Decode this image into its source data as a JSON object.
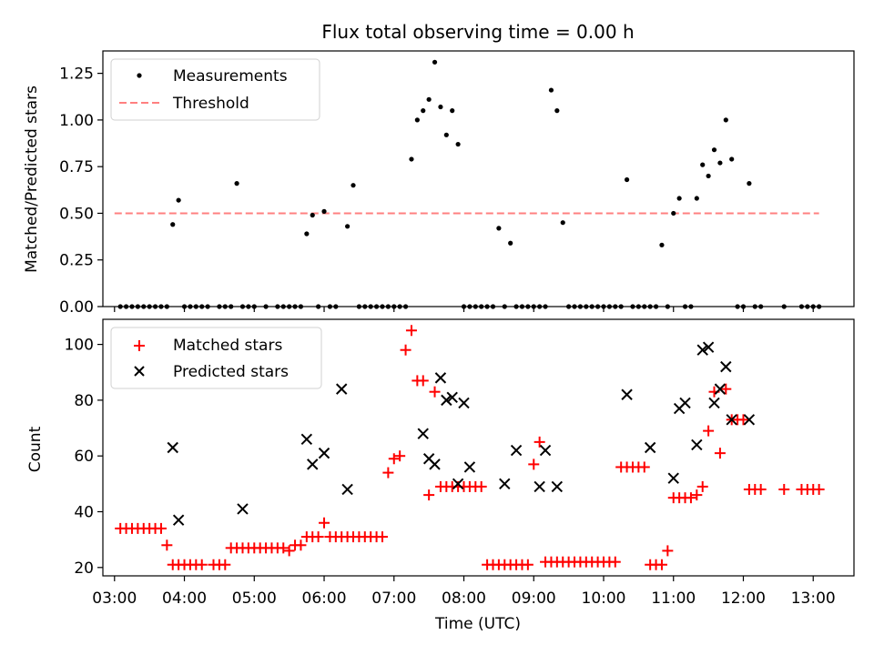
{
  "chart_data": [
    {
      "type": "scatter",
      "title": "Flux total observing time = 0.00 h",
      "xlabel": "",
      "ylabel": "Matched/Predicted stars",
      "ylim": [
        0,
        1.37
      ],
      "yticks": [
        "0.00",
        "0.25",
        "0.50",
        "0.75",
        "1.00",
        "1.25"
      ],
      "ytick_values": [
        0,
        0.25,
        0.5,
        0.75,
        1.0,
        1.25
      ],
      "legend_position": "top-left",
      "threshold": 0.5,
      "threshold_range": [
        "03:00",
        "13:05"
      ],
      "series": [
        {
          "name": "Measurements",
          "marker": "dot",
          "color": "#000000",
          "x": [
            "03:05",
            "03:10",
            "03:15",
            "03:20",
            "03:25",
            "03:30",
            "03:35",
            "03:40",
            "03:45",
            "03:50",
            "03:55",
            "04:00",
            "04:05",
            "04:10",
            "04:15",
            "04:20",
            "04:30",
            "04:35",
            "04:40",
            "04:45",
            "04:50",
            "04:55",
            "05:00",
            "05:10",
            "05:20",
            "05:25",
            "05:30",
            "05:35",
            "05:40",
            "05:45",
            "05:50",
            "05:55",
            "06:00",
            "06:05",
            "06:10",
            "06:20",
            "06:25",
            "06:30",
            "06:35",
            "06:40",
            "06:45",
            "06:50",
            "06:55",
            "07:00",
            "07:05",
            "07:10",
            "07:15",
            "07:20",
            "07:25",
            "07:30",
            "07:35",
            "07:40",
            "07:45",
            "07:50",
            "07:55",
            "08:00",
            "08:05",
            "08:10",
            "08:15",
            "08:20",
            "08:25",
            "08:30",
            "08:35",
            "08:40",
            "08:45",
            "08:50",
            "08:55",
            "09:00",
            "09:05",
            "09:10",
            "09:15",
            "09:20",
            "09:25",
            "09:30",
            "09:35",
            "09:40",
            "09:45",
            "09:50",
            "09:55",
            "10:00",
            "10:05",
            "10:10",
            "10:15",
            "10:20",
            "10:25",
            "10:30",
            "10:35",
            "10:40",
            "10:45",
            "10:50",
            "10:55",
            "11:00",
            "11:05",
            "11:10",
            "11:15",
            "11:20",
            "11:25",
            "11:30",
            "11:35",
            "11:40",
            "11:45",
            "11:50",
            "11:55",
            "12:00",
            "12:05",
            "12:10",
            "12:15",
            "12:35",
            "12:50",
            "12:55",
            "13:00",
            "13:05"
          ],
          "values": [
            0,
            0,
            0,
            0,
            0,
            0,
            0,
            0,
            0,
            0.44,
            0.57,
            0,
            0,
            0,
            0,
            0,
            0,
            0,
            0,
            0.66,
            0,
            0,
            0,
            0,
            0,
            0,
            0,
            0,
            0,
            0.39,
            0.49,
            0,
            0.51,
            0,
            0,
            0.43,
            0.65,
            0,
            0,
            0,
            0,
            0,
            0,
            0,
            0,
            0,
            0.79,
            1.0,
            1.05,
            1.11,
            1.31,
            1.07,
            0.92,
            1.05,
            0.87,
            0,
            0,
            0,
            0,
            0,
            0,
            0.42,
            0,
            0.34,
            0,
            0,
            0,
            0,
            0,
            0,
            1.16,
            1.05,
            0.45,
            0,
            0,
            0,
            0,
            0,
            0,
            0,
            0,
            0,
            0,
            0.68,
            0,
            0,
            0,
            0,
            0,
            0.33,
            0,
            0.5,
            0.58,
            0,
            0,
            0.58,
            0.76,
            0.7,
            0.84,
            0.77,
            1.0,
            0.79,
            0,
            0,
            0.66,
            0,
            0,
            0,
            0,
            0,
            0,
            0
          ]
        },
        {
          "name": "Threshold",
          "marker": "dashed-line",
          "color": "#ff8080"
        }
      ]
    },
    {
      "type": "scatter",
      "title": "",
      "xlabel": "Time (UTC)",
      "ylabel": "Count",
      "xticks": [
        "03:00",
        "04:00",
        "05:00",
        "06:00",
        "07:00",
        "08:00",
        "09:00",
        "10:00",
        "11:00",
        "12:00",
        "13:00"
      ],
      "xlim": [
        "02:50",
        "13:35"
      ],
      "ylim": [
        17,
        109
      ],
      "yticks": [
        "20",
        "40",
        "60",
        "80",
        "100"
      ],
      "ytick_values": [
        20,
        40,
        60,
        80,
        100
      ],
      "legend_position": "top-left",
      "series": [
        {
          "name": "Matched stars",
          "marker": "plus",
          "color": "#ff0000",
          "x": [
            "03:05",
            "03:10",
            "03:15",
            "03:20",
            "03:25",
            "03:30",
            "03:35",
            "03:40",
            "03:45",
            "03:50",
            "03:55",
            "04:00",
            "04:05",
            "04:10",
            "04:15",
            "04:25",
            "04:30",
            "04:35",
            "04:40",
            "04:45",
            "04:50",
            "04:55",
            "05:00",
            "05:05",
            "05:10",
            "05:15",
            "05:20",
            "05:25",
            "05:30",
            "05:35",
            "05:40",
            "05:45",
            "05:50",
            "05:55",
            "06:00",
            "06:05",
            "06:10",
            "06:15",
            "06:20",
            "06:25",
            "06:30",
            "06:35",
            "06:40",
            "06:45",
            "06:50",
            "06:55",
            "07:00",
            "07:05",
            "07:10",
            "07:15",
            "07:20",
            "07:25",
            "07:30",
            "07:35",
            "07:40",
            "07:45",
            "07:50",
            "07:55",
            "08:00",
            "08:05",
            "08:10",
            "08:15",
            "08:20",
            "08:25",
            "08:30",
            "08:35",
            "08:40",
            "08:45",
            "08:50",
            "08:55",
            "09:00",
            "09:05",
            "09:10",
            "09:15",
            "09:20",
            "09:25",
            "09:30",
            "09:35",
            "09:40",
            "09:45",
            "09:50",
            "09:55",
            "10:00",
            "10:05",
            "10:10",
            "10:15",
            "10:20",
            "10:25",
            "10:30",
            "10:35",
            "10:40",
            "10:45",
            "10:50",
            "10:55",
            "11:00",
            "11:05",
            "11:10",
            "11:15",
            "11:20",
            "11:25",
            "11:30",
            "11:35",
            "11:40",
            "11:45",
            "11:50",
            "11:55",
            "12:00",
            "12:05",
            "12:10",
            "12:15",
            "12:35",
            "12:50",
            "12:55",
            "13:00",
            "13:05"
          ],
          "values": [
            34,
            34,
            34,
            34,
            34,
            34,
            34,
            34,
            28,
            21,
            21,
            21,
            21,
            21,
            21,
            21,
            21,
            21,
            27,
            27,
            27,
            27,
            27,
            27,
            27,
            27,
            27,
            27,
            26,
            28,
            28,
            31,
            31,
            31,
            36,
            31,
            31,
            31,
            31,
            31,
            31,
            31,
            31,
            31,
            31,
            54,
            59,
            60,
            98,
            105,
            87,
            87,
            46,
            83,
            49,
            49,
            49,
            49,
            49,
            49,
            49,
            49,
            21,
            21,
            21,
            21,
            21,
            21,
            21,
            21,
            57,
            65,
            22,
            22,
            22,
            22,
            22,
            22,
            22,
            22,
            22,
            22,
            22,
            22,
            22,
            56,
            56,
            56,
            56,
            56,
            21,
            21,
            21,
            26,
            45,
            45,
            45,
            45,
            46,
            49,
            69,
            83,
            61,
            84,
            73,
            73,
            73,
            48,
            48,
            48,
            48,
            48,
            48,
            48,
            48
          ],
          "x_note": "values aligned with x"
        },
        {
          "name": "Predicted stars",
          "marker": "x",
          "color": "#000000",
          "x": [
            "03:50",
            "03:55",
            "04:50",
            "05:45",
            "05:50",
            "06:00",
            "06:15",
            "06:20",
            "07:25",
            "07:30",
            "07:35",
            "07:40",
            "07:45",
            "07:50",
            "07:55",
            "08:00",
            "08:05",
            "08:35",
            "08:45",
            "09:05",
            "09:10",
            "09:20",
            "10:20",
            "10:40",
            "11:00",
            "11:05",
            "11:10",
            "11:20",
            "11:25",
            "11:30",
            "11:35",
            "11:40",
            "11:45",
            "11:50",
            "12:05"
          ],
          "values": [
            63,
            37,
            41,
            66,
            57,
            61,
            84,
            48,
            68,
            59,
            57,
            88,
            80,
            81,
            50,
            79,
            56,
            50,
            62,
            49,
            62,
            49,
            82,
            63,
            52,
            77,
            79,
            64,
            98,
            99,
            79,
            84,
            92,
            73,
            73
          ]
        }
      ]
    }
  ]
}
